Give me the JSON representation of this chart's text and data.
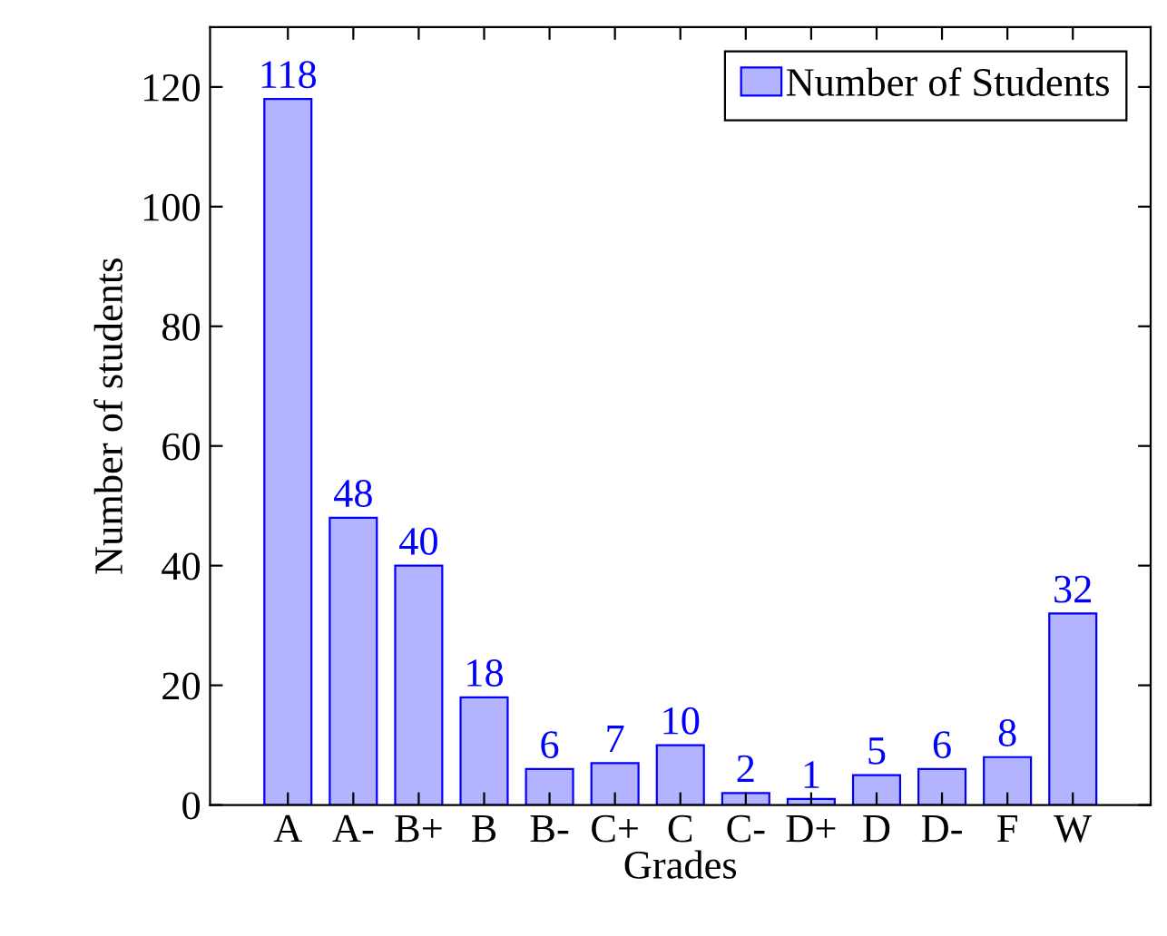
{
  "chart_data": {
    "type": "bar",
    "xlabel": "Grades",
    "ylabel": "Number of students",
    "categories": [
      "A",
      "A-",
      "B+",
      "B",
      "B-",
      "C+",
      "C",
      "C-",
      "D+",
      "D",
      "D-",
      "F",
      "W"
    ],
    "series": [
      {
        "name": "Number of Students",
        "color": "#b3b3ff",
        "values": [
          118,
          48,
          40,
          18,
          6,
          7,
          10,
          2,
          1,
          5,
          6,
          8,
          32
        ]
      }
    ],
    "ylim": [
      0,
      130
    ],
    "yticks": [
      0,
      20,
      40,
      60,
      80,
      100,
      120
    ],
    "data_labels": true,
    "legend": "top right",
    "grid": false
  }
}
